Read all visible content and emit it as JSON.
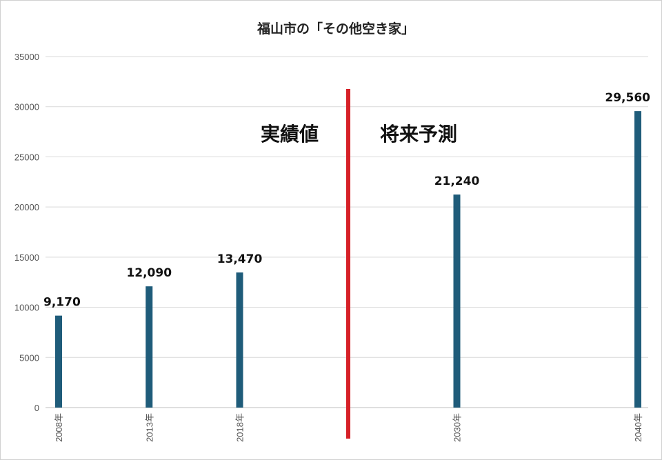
{
  "chart_data": {
    "type": "bar",
    "title": "福山市の「その他空き家」",
    "categories": [
      "2008年",
      "2013年",
      "2018年",
      "2030年",
      "2040年"
    ],
    "category_x": [
      2008,
      2013,
      2018,
      2030,
      2040
    ],
    "values": [
      9170,
      12090,
      13470,
      21240,
      29560
    ],
    "value_labels": [
      "9,170",
      "12,090",
      "13,470",
      "21,240",
      "29,560"
    ],
    "yticks": [
      "0",
      "5000",
      "10000",
      "15000",
      "20000",
      "25000",
      "30000",
      "35000"
    ],
    "ylim": [
      0,
      35000
    ],
    "xlim": [
      2008,
      2040
    ],
    "grid": true,
    "bar_color": "#1f5c7a",
    "divider": {
      "x": 2024,
      "color": "#d62027"
    },
    "annotations": [
      {
        "text": "実績値",
        "side": "left"
      },
      {
        "text": "将来予測",
        "side": "right"
      }
    ]
  }
}
